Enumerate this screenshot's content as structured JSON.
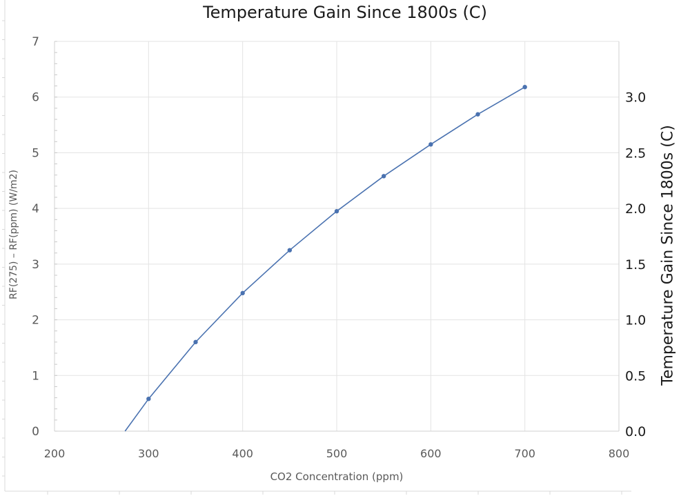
{
  "chart_data": {
    "type": "line",
    "title": "Temperature Gain Since 1800s (C)",
    "xlabel": "CO2 Concentration (ppm)",
    "ylabel": "RF(275) – RF(ppm) (W/m2)",
    "y2label": "Temperature Gain Since 1800s (C)",
    "xlim": [
      200,
      800
    ],
    "ylim": [
      0,
      7
    ],
    "y2lim": [
      0,
      3.5
    ],
    "x_ticks": [
      "200",
      "300",
      "400",
      "500",
      "600",
      "700",
      "800"
    ],
    "y_ticks": [
      "0",
      "1",
      "2",
      "3",
      "4",
      "5",
      "6",
      "7"
    ],
    "y2_ticks": [
      "0.0",
      "0.5",
      "1.0",
      "1.5",
      "2.0",
      "2.5",
      "3.0"
    ],
    "grid": true,
    "legend": null,
    "series": [
      {
        "name": "RF(275) – RF(ppm)",
        "color": "#4a72b0",
        "line_start": {
          "x": 275,
          "y": 0
        },
        "x": [
          300,
          350,
          400,
          450,
          500,
          550,
          600,
          650,
          700
        ],
        "values": [
          0.58,
          1.6,
          2.48,
          3.25,
          3.95,
          4.58,
          5.15,
          5.69,
          6.18
        ]
      }
    ]
  }
}
